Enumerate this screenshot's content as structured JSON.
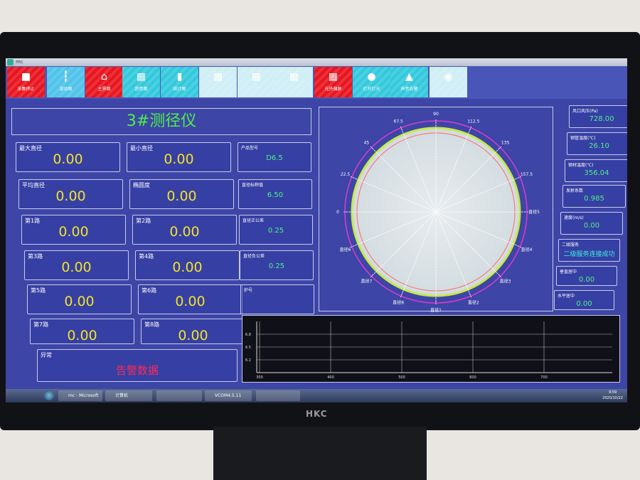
{
  "window": {
    "title": "mc"
  },
  "toolbar": [
    {
      "label": "采集停止",
      "icon": "stop-icon",
      "color": "#e8151f"
    },
    {
      "label": "波动图",
      "icon": "waveform-icon",
      "color": "#4fc3ea"
    },
    {
      "label": "主界面",
      "icon": "home-icon",
      "color": "#e8151f"
    },
    {
      "label": "趋势图",
      "icon": "grid-icon",
      "color": "#33c9dd"
    },
    {
      "label": "统计图",
      "icon": "bar-chart-icon",
      "color": "#33c9dd"
    },
    {
      "label": "",
      "icon": "grid-icon",
      "color": "#cfeef5"
    },
    {
      "label": "",
      "icon": "grid-icon",
      "color": "#cfeef5"
    },
    {
      "label": "",
      "icon": "grid-icon",
      "color": "#cfeef5"
    },
    {
      "label": "光外偏屏",
      "icon": "grid-icon",
      "color": "#e8151f"
    },
    {
      "label": "打开灯光",
      "icon": "lightbulb-icon",
      "color": "#33c9dd"
    },
    {
      "label": "声音告警",
      "icon": "bell-icon",
      "color": "#33c9dd"
    },
    {
      "label": "",
      "icon": "location-pin-icon",
      "color": "#cfeef5"
    }
  ],
  "header": {
    "title": "3#测径仪"
  },
  "left_cards": [
    {
      "label": "最大直径",
      "value": "0.00"
    },
    {
      "label": "最小直径",
      "value": "0.00"
    },
    {
      "label": "平均直径",
      "value": "0.00"
    },
    {
      "label": "椭圆度",
      "value": "0.00"
    },
    {
      "label": "第1路",
      "value": "0.00"
    },
    {
      "label": "第2路",
      "value": "0.00"
    },
    {
      "label": "第3路",
      "value": "0.00"
    },
    {
      "label": "第4路",
      "value": "0.00"
    },
    {
      "label": "第5路",
      "value": "0.00"
    },
    {
      "label": "第6路",
      "value": "0.00"
    },
    {
      "label": "第7路",
      "value": "0.00"
    },
    {
      "label": "第8路",
      "value": "0.00"
    }
  ],
  "spec_cards": [
    {
      "label": "产品型号",
      "value": "D6.5"
    },
    {
      "label": "直径标称值",
      "value": "6.50"
    },
    {
      "label": "直径正公差",
      "value": "0.25"
    },
    {
      "label": "直径负公差",
      "value": "0.25"
    },
    {
      "label": "炉号",
      "value": ""
    }
  ],
  "alarm": {
    "label": "异常",
    "value": "告警数据",
    "color": "#ff2a55"
  },
  "right_cards": [
    {
      "label": "风口风压(Pa)",
      "value": "728.00"
    },
    {
      "label": "钢管温度(℃)",
      "value": "26.10"
    },
    {
      "label": "钢材温度(℃)",
      "value": "356.04"
    },
    {
      "label": "发射系数",
      "value": "0.985"
    },
    {
      "label": "速度(m/s)",
      "value": "0.00"
    },
    {
      "label": "二级服务",
      "value": "二级服务连接成功"
    },
    {
      "label": "垂直居中",
      "value": "0.00"
    },
    {
      "label": "水平居中",
      "value": "0.00"
    }
  ],
  "polar": {
    "angle_labels": [
      "0",
      "22.5",
      "45",
      "67.5",
      "90",
      "112.5",
      "135",
      "157.5"
    ],
    "diameter_labels": [
      "直径5",
      "直径4",
      "直径3",
      "直径2",
      "直径1",
      "直径8",
      "直径7",
      "直径6"
    ],
    "colors": {
      "outer": "#e03ad0",
      "profile": "#c8e84a",
      "inner": "#ff6a6a"
    }
  },
  "trend": {
    "x_ticks": [
      "300",
      "400",
      "500",
      "600",
      "700"
    ],
    "y_ticks": [
      "6.8",
      "6.5",
      "6.2"
    ]
  },
  "taskbar": {
    "items": [
      "mc - Microsoft ...",
      "计算机",
      "",
      "VCOM4.5.11",
      ""
    ],
    "time": "9:59",
    "date": "2020/10/22"
  }
}
